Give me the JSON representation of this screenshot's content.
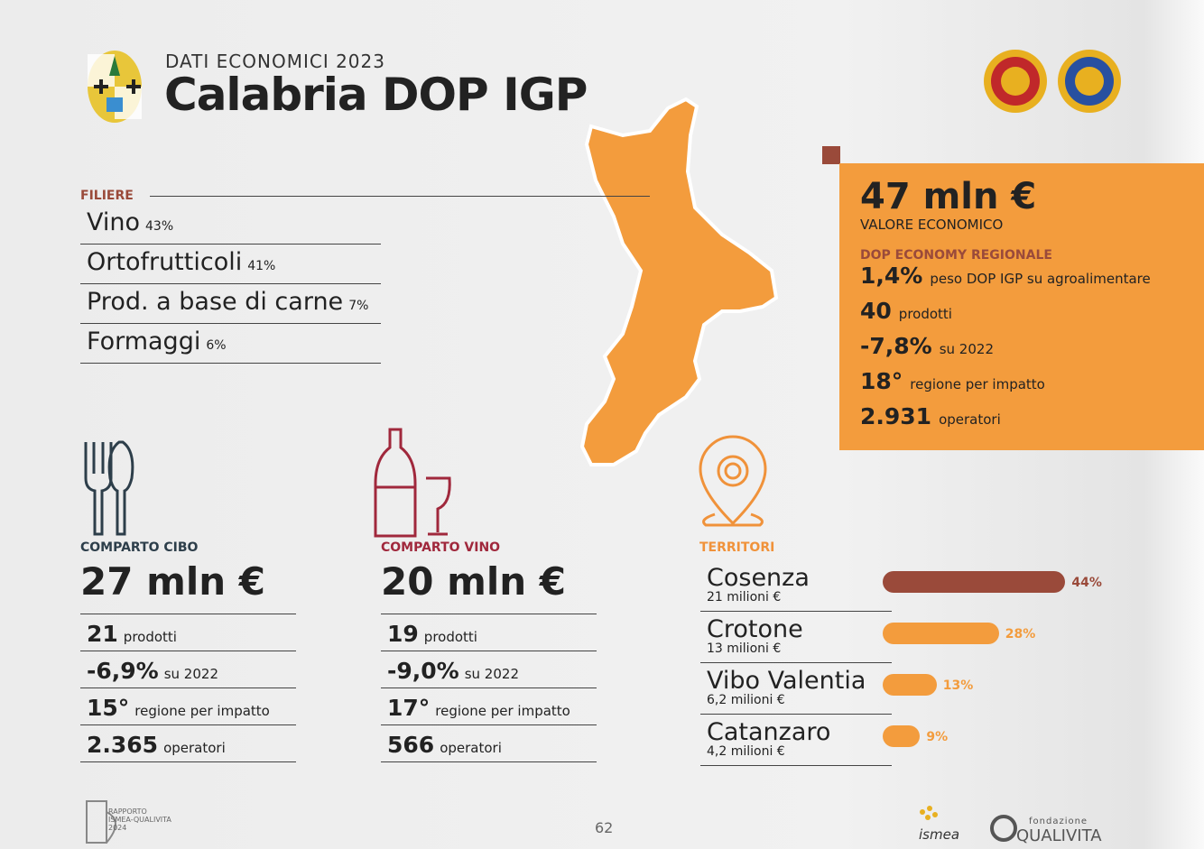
{
  "header": {
    "subtitle": "DATI ECONOMICI 2023",
    "title": "Calabria DOP IGP"
  },
  "filiere": {
    "heading": "FILIERE",
    "items": [
      {
        "name": "Vino",
        "share": "43%"
      },
      {
        "name": "Ortofrutticoli",
        "share": "41%"
      },
      {
        "name": "Prod. a base di carne",
        "share": "7%"
      },
      {
        "name": "Formaggi",
        "share": "6%"
      }
    ]
  },
  "summary": {
    "value": "47 mln €",
    "label": "VALORE ECONOMICO",
    "heading": "DOP ECONOMY REGIONALE",
    "rows": [
      {
        "value": "1,4%",
        "text": "peso DOP IGP su agroalimentare"
      },
      {
        "value": "40",
        "text": "prodotti"
      },
      {
        "value": "-7,8%",
        "text": "su 2022"
      },
      {
        "value": "18°",
        "text": "regione per impatto"
      },
      {
        "value": "2.931",
        "text": "operatori"
      }
    ]
  },
  "cibo": {
    "heading": "COMPARTO CIBO",
    "value": "27 mln €",
    "rows": [
      {
        "value": "21",
        "text": "prodotti"
      },
      {
        "value": "-6,9%",
        "text": "su 2022"
      },
      {
        "value": "15°",
        "text": "regione per impatto"
      },
      {
        "value": "2.365",
        "text": "operatori"
      }
    ]
  },
  "vino": {
    "heading": "COMPARTO VINO",
    "value": "20 mln €",
    "rows": [
      {
        "value": "19",
        "text": "prodotti"
      },
      {
        "value": "-9,0%",
        "text": "su 2022"
      },
      {
        "value": "17°",
        "text": "regione per impatto"
      },
      {
        "value": "566",
        "text": "operatori"
      }
    ]
  },
  "territori": {
    "heading": "TERRITORI",
    "items": [
      {
        "name": "Cosenza",
        "amount": "21 milioni €",
        "share": 44,
        "share_label": "44%"
      },
      {
        "name": "Crotone",
        "amount": "13 milioni €",
        "share": 28,
        "share_label": "28%"
      },
      {
        "name": "Vibo Valentia",
        "amount": "6,2 milioni €",
        "share": 13,
        "share_label": "13%"
      },
      {
        "name": "Catanzaro",
        "amount": "4,2 milioni €",
        "share": 9,
        "share_label": "9%"
      }
    ]
  },
  "footer": {
    "report": [
      "RAPPORTO",
      "ISMEA-QUALIVITA",
      "2024"
    ],
    "page": "62",
    "ismea": "ismea",
    "qualivita_top": "fondazione",
    "qualivita": "QUALIVITA"
  }
}
